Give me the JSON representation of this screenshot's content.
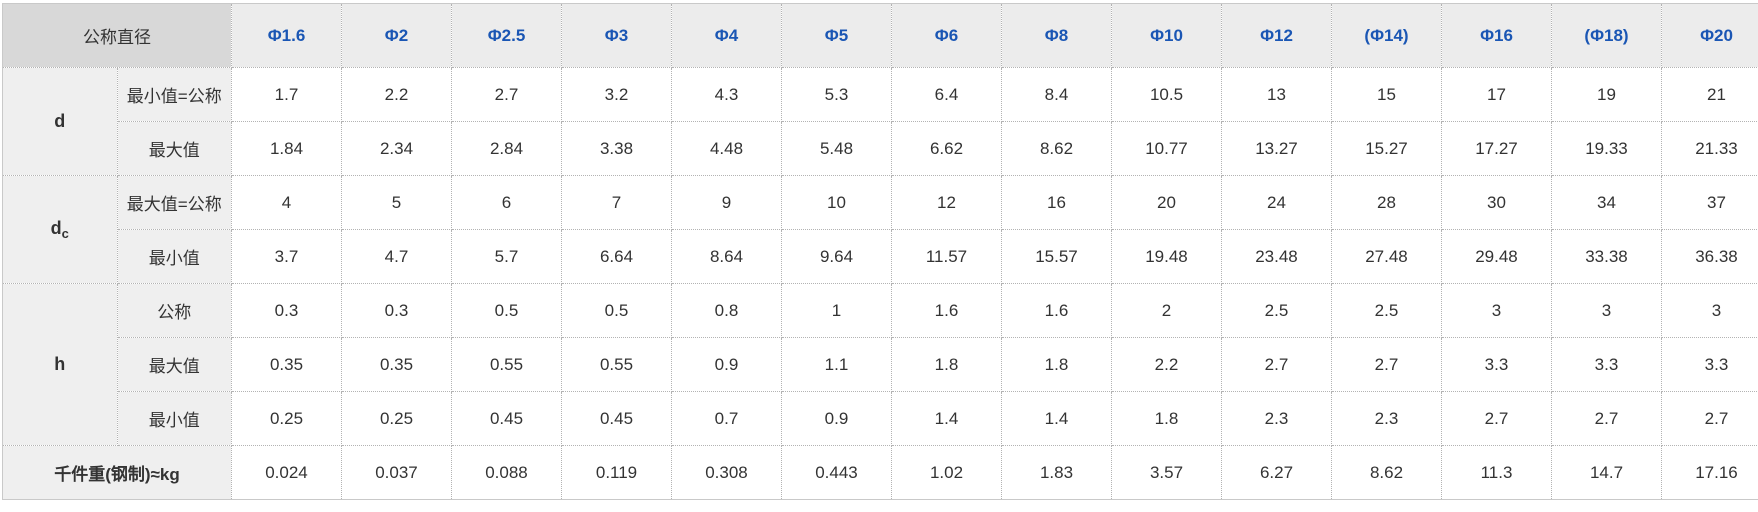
{
  "colors": {
    "accent_blue": "#1a56b4",
    "corner_bg": "#d8d8d8",
    "header_bg": "#ececec",
    "label_bg": "#efefef",
    "border_dotted": "#b3b3b3",
    "border_outer": "#c9c9c9"
  },
  "table": {
    "corner_label": "公称直径",
    "columns": [
      "Φ1.6",
      "Φ2",
      "Φ2.5",
      "Φ3",
      "Φ4",
      "Φ5",
      "Φ6",
      "Φ8",
      "Φ10",
      "Φ12",
      "(Φ14)",
      "Φ16",
      "(Φ18)",
      "Φ20"
    ],
    "rows": [
      {
        "group": "d",
        "group_sub": "",
        "group_span": 2,
        "label": "最小值=公称",
        "values": [
          "1.7",
          "2.2",
          "2.7",
          "3.2",
          "4.3",
          "5.3",
          "6.4",
          "8.4",
          "10.5",
          "13",
          "15",
          "17",
          "19",
          "21"
        ]
      },
      {
        "label": "最大值",
        "values": [
          "1.84",
          "2.34",
          "2.84",
          "3.38",
          "4.48",
          "5.48",
          "6.62",
          "8.62",
          "10.77",
          "13.27",
          "15.27",
          "17.27",
          "19.33",
          "21.33"
        ]
      },
      {
        "group": "d",
        "group_sub": "c",
        "group_span": 2,
        "label": "最大值=公称",
        "values": [
          "4",
          "5",
          "6",
          "7",
          "9",
          "10",
          "12",
          "16",
          "20",
          "24",
          "28",
          "30",
          "34",
          "37"
        ]
      },
      {
        "label": "最小值",
        "values": [
          "3.7",
          "4.7",
          "5.7",
          "6.64",
          "8.64",
          "9.64",
          "11.57",
          "15.57",
          "19.48",
          "23.48",
          "27.48",
          "29.48",
          "33.38",
          "36.38"
        ]
      },
      {
        "group": "h",
        "group_sub": "",
        "group_span": 3,
        "label": "公称",
        "values": [
          "0.3",
          "0.3",
          "0.5",
          "0.5",
          "0.8",
          "1",
          "1.6",
          "1.6",
          "2",
          "2.5",
          "2.5",
          "3",
          "3",
          "3"
        ]
      },
      {
        "label": "最大值",
        "values": [
          "0.35",
          "0.35",
          "0.55",
          "0.55",
          "0.9",
          "1.1",
          "1.8",
          "1.8",
          "2.2",
          "2.7",
          "2.7",
          "3.3",
          "3.3",
          "3.3"
        ]
      },
      {
        "label": "最小值",
        "values": [
          "0.25",
          "0.25",
          "0.45",
          "0.45",
          "0.7",
          "0.9",
          "1.4",
          "1.4",
          "1.8",
          "2.3",
          "2.3",
          "2.7",
          "2.7",
          "2.7"
        ]
      },
      {
        "footer": true,
        "label": "千件重(钢制)≈kg",
        "values": [
          "0.024",
          "0.037",
          "0.088",
          "0.119",
          "0.308",
          "0.443",
          "1.02",
          "1.83",
          "3.57",
          "6.27",
          "8.62",
          "11.3",
          "14.7",
          "17.16"
        ]
      }
    ]
  }
}
